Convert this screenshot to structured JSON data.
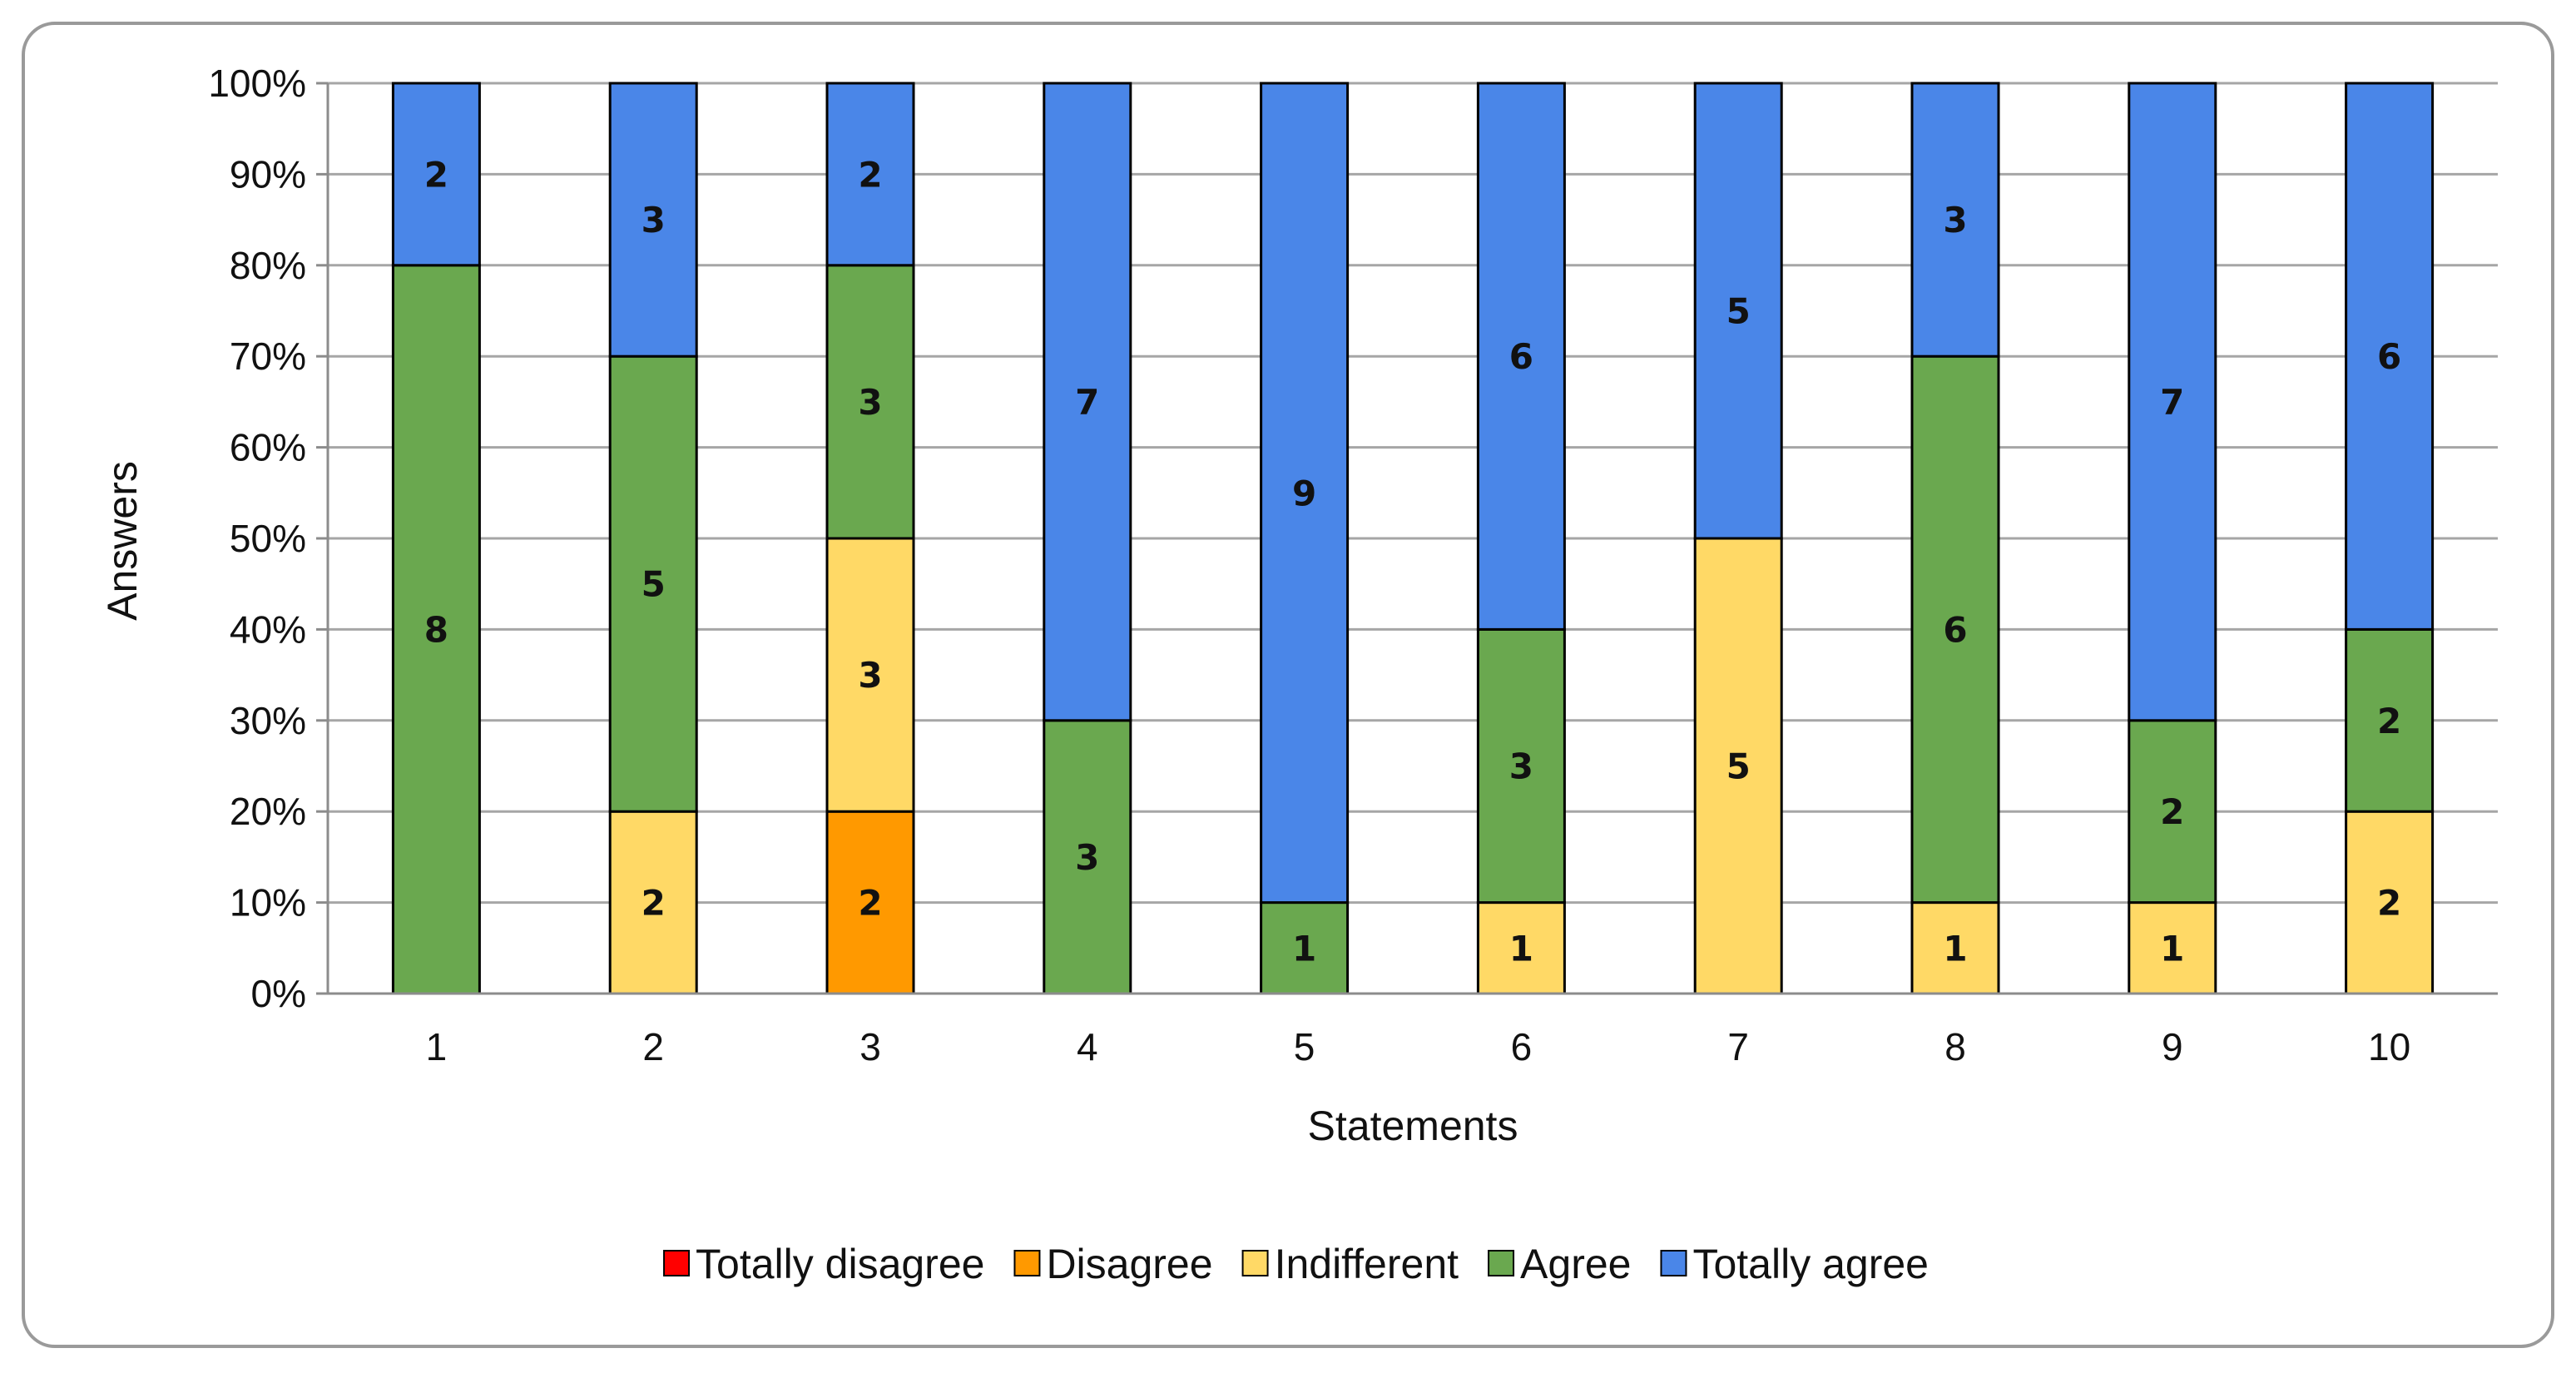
{
  "chart_data": {
    "type": "bar",
    "stacked": true,
    "normalized": true,
    "title": "",
    "xlabel": "Statements",
    "ylabel": "Answers",
    "categories": [
      "1",
      "2",
      "3",
      "4",
      "5",
      "6",
      "7",
      "8",
      "9",
      "10"
    ],
    "y_ticks": [
      "0%",
      "10%",
      "20%",
      "30%",
      "40%",
      "50%",
      "60%",
      "70%",
      "80%",
      "90%",
      "100%"
    ],
    "ylim": [
      0,
      100
    ],
    "grid": true,
    "legend_position": "bottom",
    "series": [
      {
        "name": "Totally disagree",
        "color": "#ff0000",
        "values": [
          0,
          0,
          0,
          0,
          0,
          0,
          0,
          0,
          0,
          0
        ]
      },
      {
        "name": "Disagree",
        "color": "#ff9900",
        "values": [
          0,
          0,
          2,
          0,
          0,
          0,
          0,
          0,
          0,
          0
        ]
      },
      {
        "name": "Indifferent",
        "color": "#ffd966",
        "values": [
          0,
          2,
          3,
          0,
          0,
          1,
          5,
          1,
          1,
          2
        ]
      },
      {
        "name": "Agree",
        "color": "#6aa84f",
        "values": [
          8,
          5,
          3,
          3,
          1,
          3,
          0,
          6,
          2,
          2
        ]
      },
      {
        "name": "Totally agree",
        "color": "#4a86e8",
        "values": [
          2,
          3,
          2,
          7,
          9,
          6,
          5,
          3,
          7,
          6
        ]
      }
    ]
  }
}
